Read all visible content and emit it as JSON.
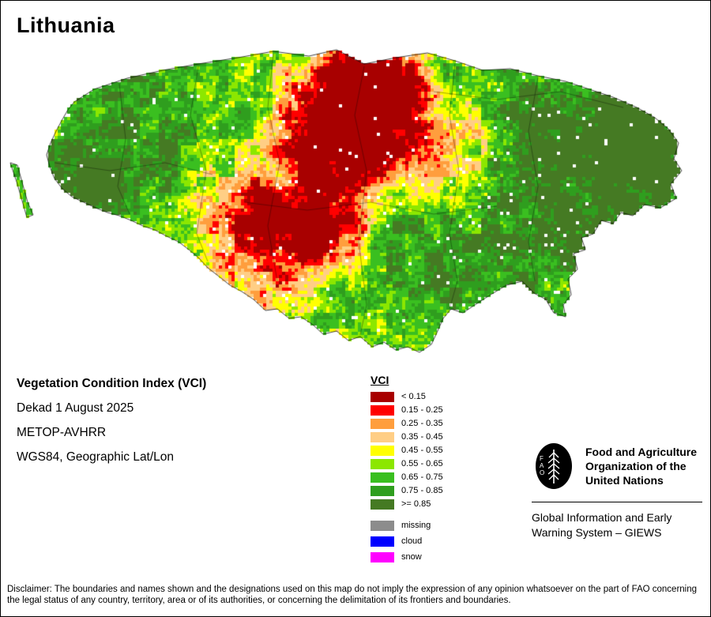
{
  "title": "Lithuania",
  "info": {
    "line1": "Vegetation Condition Index (VCI)",
    "line2": "Dekad 1 August 2025",
    "line3": "METOP-AVHRR",
    "line4": "WGS84, Geographic Lat/Lon"
  },
  "legend": {
    "title": "VCI",
    "classes": [
      {
        "label": "< 0.15",
        "color": "#a80000"
      },
      {
        "label": "0.15 - 0.25",
        "color": "#ff0000"
      },
      {
        "label": "0.25 - 0.35",
        "color": "#ff9e3d"
      },
      {
        "label": "0.35 - 0.45",
        "color": "#ffce85"
      },
      {
        "label": "0.45 - 0.55",
        "color": "#ffff00"
      },
      {
        "label": "0.55 - 0.65",
        "color": "#8ce700"
      },
      {
        "label": "0.65 - 0.75",
        "color": "#3abf20"
      },
      {
        "label": "0.75 - 0.85",
        "color": "#2f9e1e"
      },
      {
        "label": ">= 0.85",
        "color": "#457a23"
      }
    ],
    "extras": [
      {
        "label": "missing",
        "color": "#8c8c8c"
      },
      {
        "label": "cloud",
        "color": "#0000ff"
      },
      {
        "label": "snow",
        "color": "#ff00ff"
      }
    ]
  },
  "fao": {
    "logo_letters": "FAO",
    "org_name": "Food and Agriculture Organization of the United Nations",
    "system_name": "Global Information and Early Warning System – GIEWS"
  },
  "disclaimer": "Disclaimer: The boundaries and names shown and the designations used on this map do not imply the expression of any opinion whatsoever on the part of FAO concerning the legal status of any country, territory, area or of its authorities, or concerning the delimitation of its frontiers and boundaries."
}
